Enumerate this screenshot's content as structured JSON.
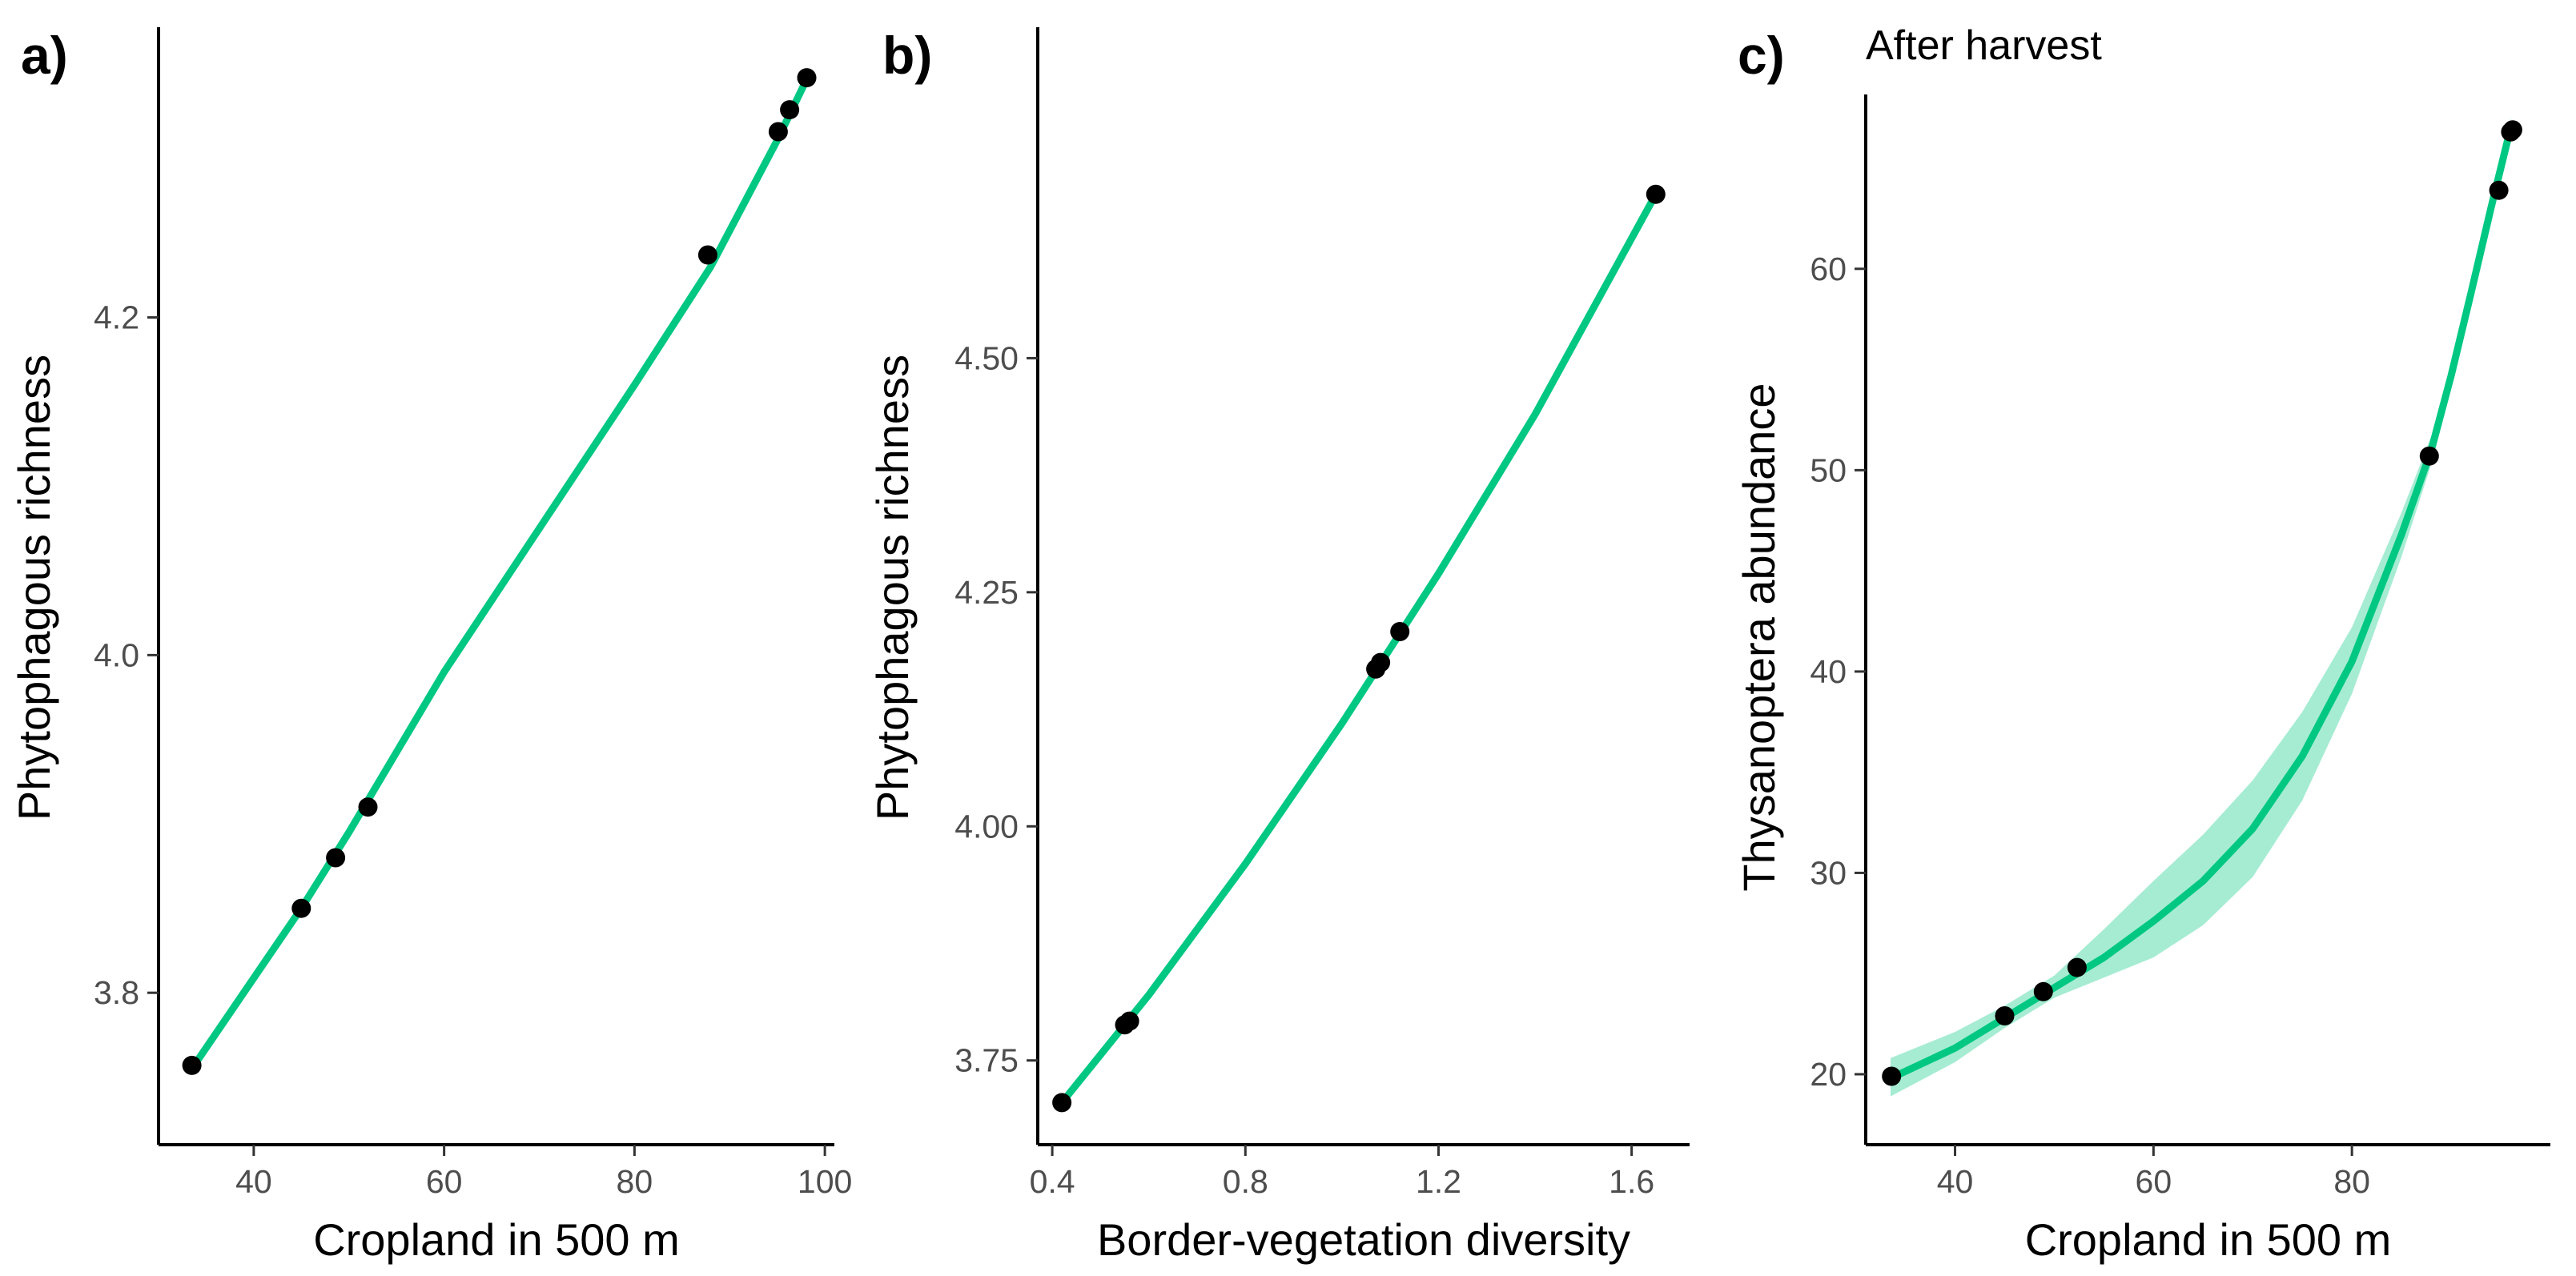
{
  "chart_data": [
    {
      "type": "line",
      "panel_label": "a)",
      "title": "",
      "xlabel": "Cropland in 500 m",
      "ylabel": "Phytophagous richness",
      "xlim": [
        30,
        101
      ],
      "ylim": [
        3.71,
        4.37
      ],
      "xticks": [
        40,
        60,
        80,
        100
      ],
      "xtick_labels": [
        "40",
        "60",
        "80",
        "100"
      ],
      "yticks": [
        3.8,
        4.0,
        4.2
      ],
      "ytick_labels": [
        "3.8",
        "4.0",
        "4.2"
      ],
      "line_color": "#00c882",
      "fit": {
        "x": [
          33.5,
          45,
          50,
          60,
          70,
          80,
          88,
          95,
          98
        ],
        "y": [
          3.755,
          3.85,
          3.895,
          3.99,
          4.075,
          4.16,
          4.23,
          4.305,
          4.34
        ]
      },
      "band": null,
      "points": {
        "x": [
          33.5,
          45.0,
          48.6,
          52.0,
          87.7,
          95.1,
          96.3,
          98.1
        ],
        "y": [
          3.757,
          3.85,
          3.88,
          3.91,
          4.237,
          4.31,
          4.323,
          4.342
        ]
      }
    },
    {
      "type": "line",
      "panel_label": "b)",
      "title": "",
      "xlabel": "Border-vegetation diversity",
      "ylabel": "Phytophagous richness",
      "xlim": [
        0.37,
        1.72
      ],
      "ylim": [
        3.66,
        4.85
      ],
      "xticks": [
        0.4,
        0.8,
        1.2,
        1.6
      ],
      "xtick_labels": [
        "0.4",
        "0.8",
        "1.2",
        "1.6"
      ],
      "yticks": [
        3.75,
        4.0,
        4.25,
        4.5
      ],
      "ytick_labels": [
        "3.75",
        "4.00",
        "4.25",
        "4.50"
      ],
      "line_color": "#00c882",
      "fit": {
        "x": [
          0.42,
          0.6,
          0.8,
          1.0,
          1.2,
          1.4,
          1.65
        ],
        "y": [
          3.705,
          3.82,
          3.96,
          4.11,
          4.27,
          4.44,
          4.675
        ]
      },
      "band": null,
      "points": {
        "x": [
          0.42,
          0.55,
          0.56,
          1.07,
          1.08,
          1.12,
          1.65
        ],
        "y": [
          3.705,
          3.788,
          3.792,
          4.168,
          4.175,
          4.208,
          4.675
        ]
      }
    },
    {
      "type": "line",
      "panel_label": "c)",
      "title": "After harvest",
      "xlabel": "Cropland in 500 m",
      "ylabel": "Thysanoptera abundance",
      "xlim": [
        31,
        100
      ],
      "ylim": [
        16.5,
        68.5
      ],
      "xticks": [
        40,
        60,
        80
      ],
      "xtick_labels": [
        "40",
        "60",
        "80"
      ],
      "yticks": [
        20,
        30,
        40,
        50,
        60
      ],
      "ytick_labels": [
        "20",
        "30",
        "40",
        "50",
        "60"
      ],
      "line_color": "#00c882",
      "fit": {
        "x": [
          33.5,
          40,
          45,
          50,
          55,
          60,
          65,
          70,
          75,
          80,
          85,
          88,
          90,
          92,
          94,
          96
        ],
        "y": [
          19.8,
          21.3,
          22.8,
          24.3,
          25.8,
          27.6,
          29.6,
          32.2,
          35.8,
          40.5,
          46.8,
          51.0,
          54.7,
          58.8,
          63.0,
          67.0
        ]
      },
      "band": {
        "x": [
          33.5,
          40,
          45,
          50,
          55,
          60,
          65,
          70,
          75,
          80,
          85,
          88,
          90,
          92,
          94,
          96
        ],
        "lower": [
          18.9,
          20.6,
          22.3,
          23.8,
          24.8,
          25.8,
          27.4,
          29.8,
          33.6,
          38.9,
          45.7,
          50.3,
          54.1,
          58.4,
          62.6,
          66.5
        ],
        "upper": [
          20.8,
          22.1,
          23.4,
          24.9,
          27.2,
          29.6,
          31.9,
          34.6,
          38.0,
          42.2,
          47.9,
          51.7,
          55.3,
          59.2,
          63.5,
          67.5
        ]
      },
      "points": {
        "x": [
          33.6,
          45.0,
          48.9,
          52.3,
          87.8,
          94.8,
          96.0,
          96.2
        ],
        "y": [
          19.9,
          22.9,
          24.1,
          25.3,
          50.7,
          63.9,
          66.8,
          66.9
        ]
      }
    }
  ]
}
